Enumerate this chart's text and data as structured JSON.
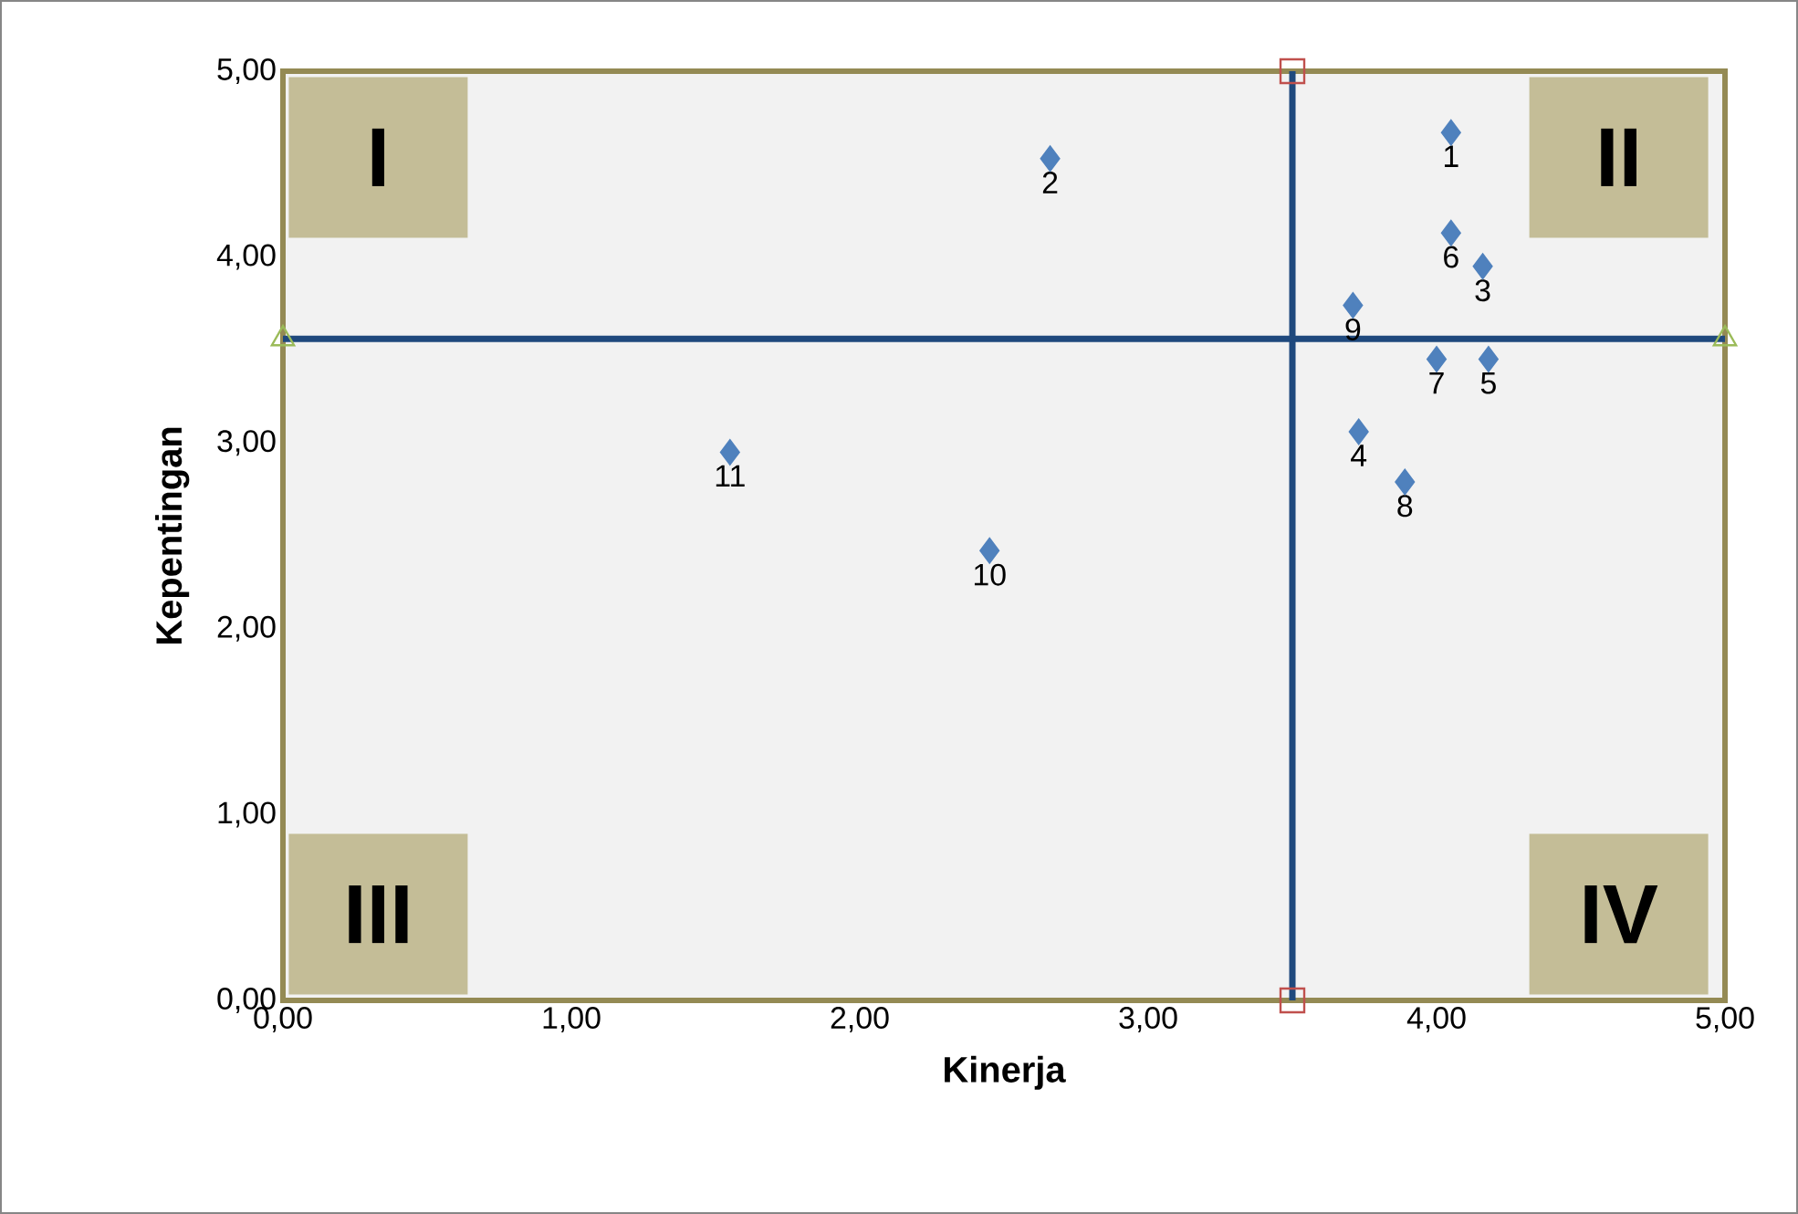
{
  "chart_data": {
    "type": "scatter",
    "xlabel": "Kinerja",
    "ylabel": "Kepentingan",
    "series": [
      {
        "type": "line",
        "color": "#1f497d",
        "marker": "none",
        "x": [
          3.5,
          3.5
        ],
        "values": [
          0,
          5
        ]
      },
      {
        "type": "line",
        "color": "#1f497d",
        "marker": "none",
        "x": [
          0,
          5
        ],
        "values": [
          3.56,
          3.56
        ]
      },
      {
        "color": "#c0504d",
        "marker": "square",
        "x": [
          3.5,
          3.5
        ],
        "values": [
          0,
          5
        ]
      },
      {
        "color": "#9bbb59",
        "marker": "triangle",
        "x": [
          0,
          5
        ],
        "values": [
          3.56,
          3.56
        ]
      },
      {
        "name": "1",
        "color": "#4f81bd",
        "x": [
          4.05
        ],
        "values": [
          4.67
        ]
      },
      {
        "name": "2",
        "color": "#4f81bd",
        "x": [
          2.66
        ],
        "values": [
          4.53
        ]
      },
      {
        "name": "3",
        "color": "#4f81bd",
        "x": [
          4.16
        ],
        "values": [
          3.95
        ]
      },
      {
        "name": "4",
        "color": "#4f81bd",
        "x": [
          3.73
        ],
        "values": [
          3.06
        ]
      },
      {
        "name": "5",
        "color": "#4f81bd",
        "x": [
          4.18
        ],
        "values": [
          3.45
        ]
      },
      {
        "name": "6",
        "color": "#4f81bd",
        "x": [
          4.05
        ],
        "values": [
          4.13
        ]
      },
      {
        "name": "7",
        "color": "#4f81bd",
        "x": [
          4.0
        ],
        "values": [
          3.45
        ]
      },
      {
        "name": "8",
        "color": "#4f81bd",
        "x": [
          3.89
        ],
        "values": [
          2.79
        ]
      },
      {
        "name": "9",
        "color": "#4f81bd",
        "x": [
          3.71
        ],
        "values": [
          3.74
        ]
      },
      {
        "name": "10",
        "color": "#4f81bd",
        "x": [
          2.45
        ],
        "values": [
          2.42
        ]
      },
      {
        "name": "11",
        "color": "#4f81bd",
        "x": [
          1.55
        ],
        "values": [
          2.95
        ]
      }
    ],
    "marker": "diamond",
    "xlim": [
      0,
      5
    ],
    "ylim": [
      0,
      5
    ],
    "xticks": [
      {
        "value": 0,
        "label": "0,00"
      },
      {
        "value": 1,
        "label": "1,00"
      },
      {
        "value": 2,
        "label": "2,00"
      },
      {
        "value": 3,
        "label": "3,00"
      },
      {
        "value": 4,
        "label": "4,00"
      },
      {
        "value": 5,
        "label": "5,00"
      }
    ],
    "yticks": [
      {
        "value": 0,
        "label": "0,00"
      },
      {
        "value": 1,
        "label": "1,00"
      },
      {
        "value": 2,
        "label": "2,00"
      },
      {
        "value": 3,
        "label": "3,00"
      },
      {
        "value": 4,
        "label": "4,00"
      },
      {
        "value": 5,
        "label": "5,00"
      }
    ],
    "annotations": [
      "I",
      "II",
      "III",
      "IV"
    ],
    "grid": false
  }
}
